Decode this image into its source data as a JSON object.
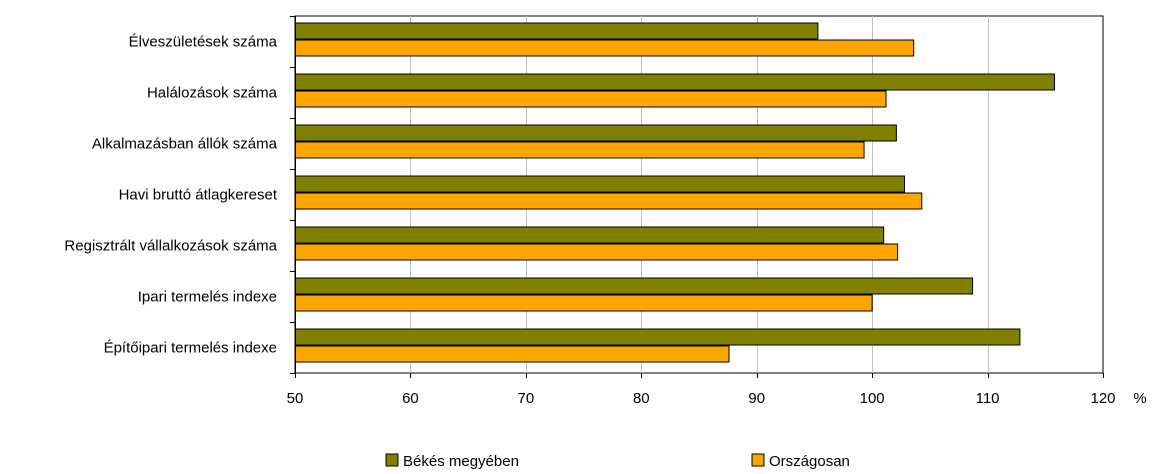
{
  "chart_data": {
    "type": "bar",
    "orientation": "horizontal",
    "categories": [
      "Élveszületések száma",
      "Halálozások száma",
      "Alkalmazásban állók száma",
      "Havi bruttó átlagkereset",
      "Regisztrált vállalkozások száma",
      "Ipari termelés indexe",
      "Építőipari termelés indexe"
    ],
    "series": [
      {
        "name": "Békés megyében",
        "color": "#808000",
        "values": [
          95.3,
          115.8,
          102.1,
          102.8,
          101.0,
          108.7,
          112.8
        ]
      },
      {
        "name": "Országosan",
        "color": "#FFA500",
        "values": [
          103.6,
          101.2,
          99.3,
          104.3,
          102.2,
          100.0,
          87.6
        ]
      }
    ],
    "xlim": [
      50,
      120
    ],
    "x_ticks": [
      "50",
      "60",
      "70",
      "80",
      "90",
      "100",
      "110",
      "120"
    ],
    "x_unit": "%",
    "grid": "vertical",
    "legend_position": "bottom"
  }
}
